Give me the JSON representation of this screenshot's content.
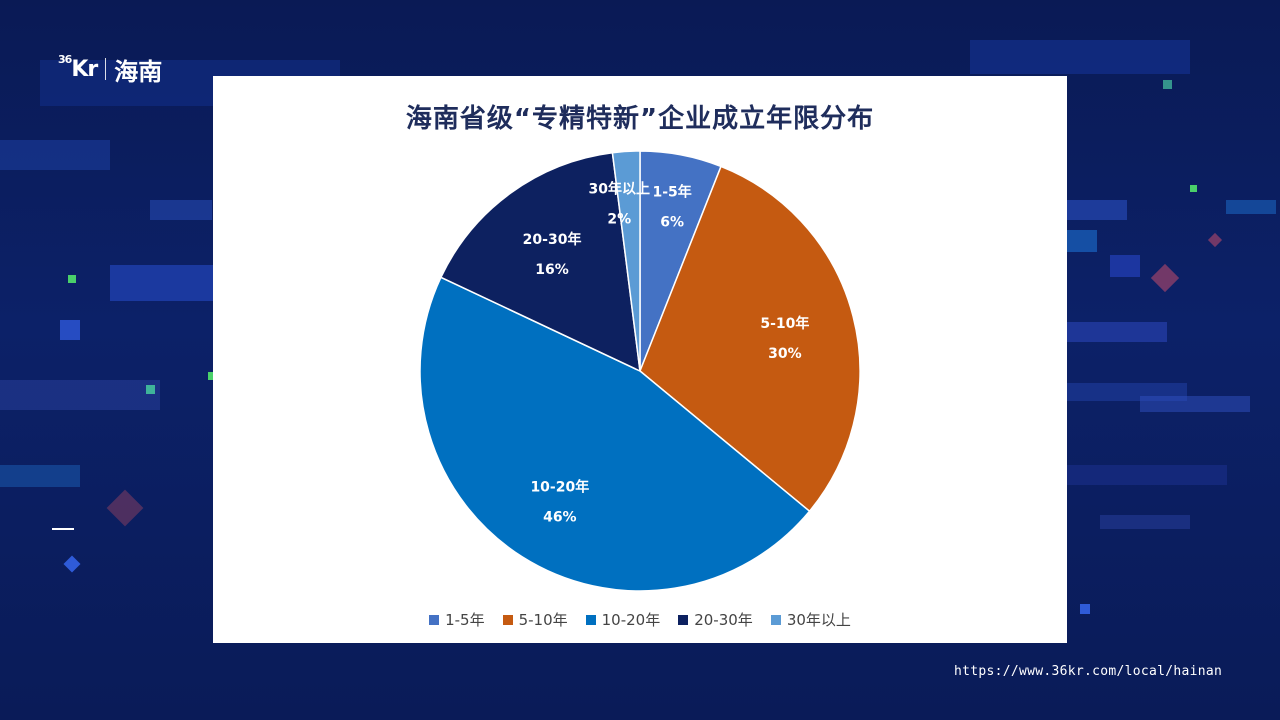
{
  "brand": {
    "mark": "36",
    "name": "Kr",
    "city": "海南"
  },
  "source_url": "https://www.36kr.com/local/hainan",
  "chart_data": {
    "type": "pie",
    "title": "海南省级“专精特新”企业成立年限分布",
    "categories": [
      "1-5年",
      "5-10年",
      "10-20年",
      "20-30年",
      "30年以上"
    ],
    "values": [
      6,
      30,
      46,
      16,
      2
    ],
    "labels": [
      "6%",
      "30%",
      "46%",
      "16%",
      "2%"
    ],
    "colors": [
      "#4472c4",
      "#c55a11",
      "#0070c0",
      "#0d2160",
      "#5b9bd5"
    ],
    "legend_position": "bottom",
    "start_angle_deg": 0,
    "direction": "clockwise"
  }
}
